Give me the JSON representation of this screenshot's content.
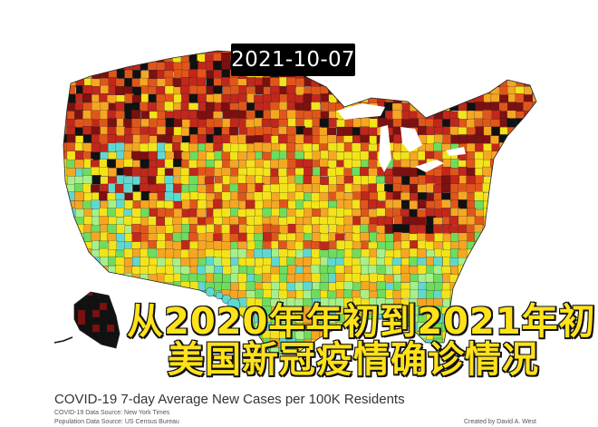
{
  "map": {
    "date": "2021-10-07",
    "palette": {
      "light_green": "#a7ef8a",
      "green": "#6edc5c",
      "cyan": "#5fd8d0",
      "yellow": "#f3e31a",
      "orange": "#f5a623",
      "dark_orange": "#e0561a",
      "red": "#c1271b",
      "dark_red": "#7d1010",
      "black": "#111111",
      "water": "#ffffff",
      "border": "#222222"
    },
    "regions": [
      "contiguous-us",
      "alaska",
      "hawaii"
    ]
  },
  "overlay": {
    "line1": "从2020年年初到2021年初",
    "line2": "美国新冠疫情确诊情况"
  },
  "footer": {
    "title": "COVID-19 7-day Average New Cases per 100K Residents",
    "source_covid": "COVID-19 Data Source: New York Times",
    "source_population": "Population Data Source: US Census Bureau",
    "credit": "Created by David A. West"
  }
}
